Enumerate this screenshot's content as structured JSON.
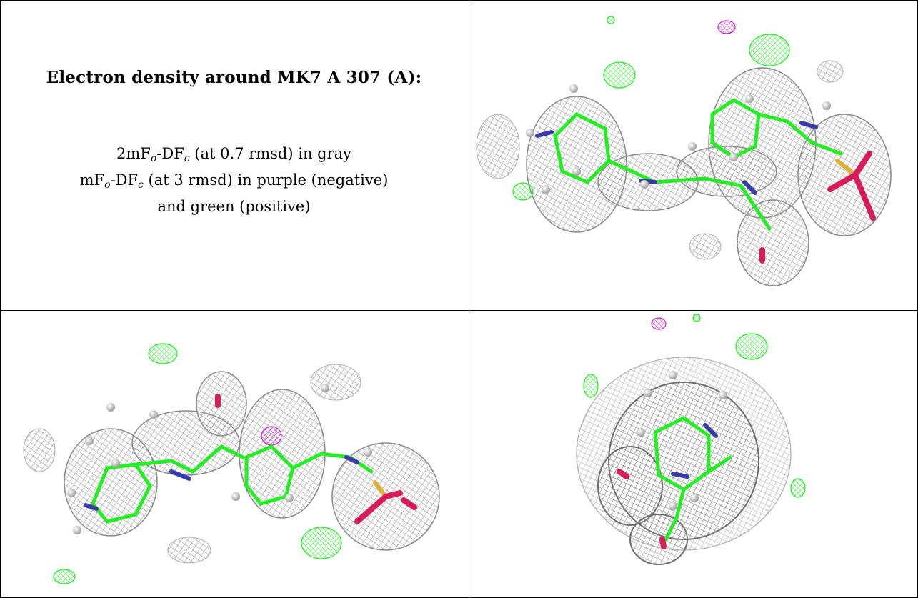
{
  "figure": {
    "title": "Electron density around MK7 A 307 (A):",
    "legend": {
      "line1": {
        "prefix": "2mF",
        "sub1": "o",
        "mid": "-DF",
        "sub2": "c",
        "suffix": " (at 0.7 rmsd) in gray"
      },
      "line2": {
        "prefix": "mF",
        "sub1": "o",
        "mid": "-DF",
        "sub2": "c",
        "suffix": " (at 3 rmsd) in purple (negative)"
      },
      "line3": "and green (positive)"
    },
    "colors": {
      "mesh_2fofc": "#8c8c8c",
      "negative": "#cc22cc",
      "positive": "#22ee22",
      "nitrogen": "#3a3aaa",
      "oxygen": "#d81b5c",
      "sulfur": "#e0b030",
      "hydrogen": "#e6e6e6"
    },
    "panels": [
      {
        "name": "view-top-right",
        "icon": "molecule-density-render"
      },
      {
        "name": "view-bottom-left",
        "icon": "molecule-density-render"
      },
      {
        "name": "view-bottom-right",
        "icon": "molecule-density-render"
      }
    ]
  }
}
